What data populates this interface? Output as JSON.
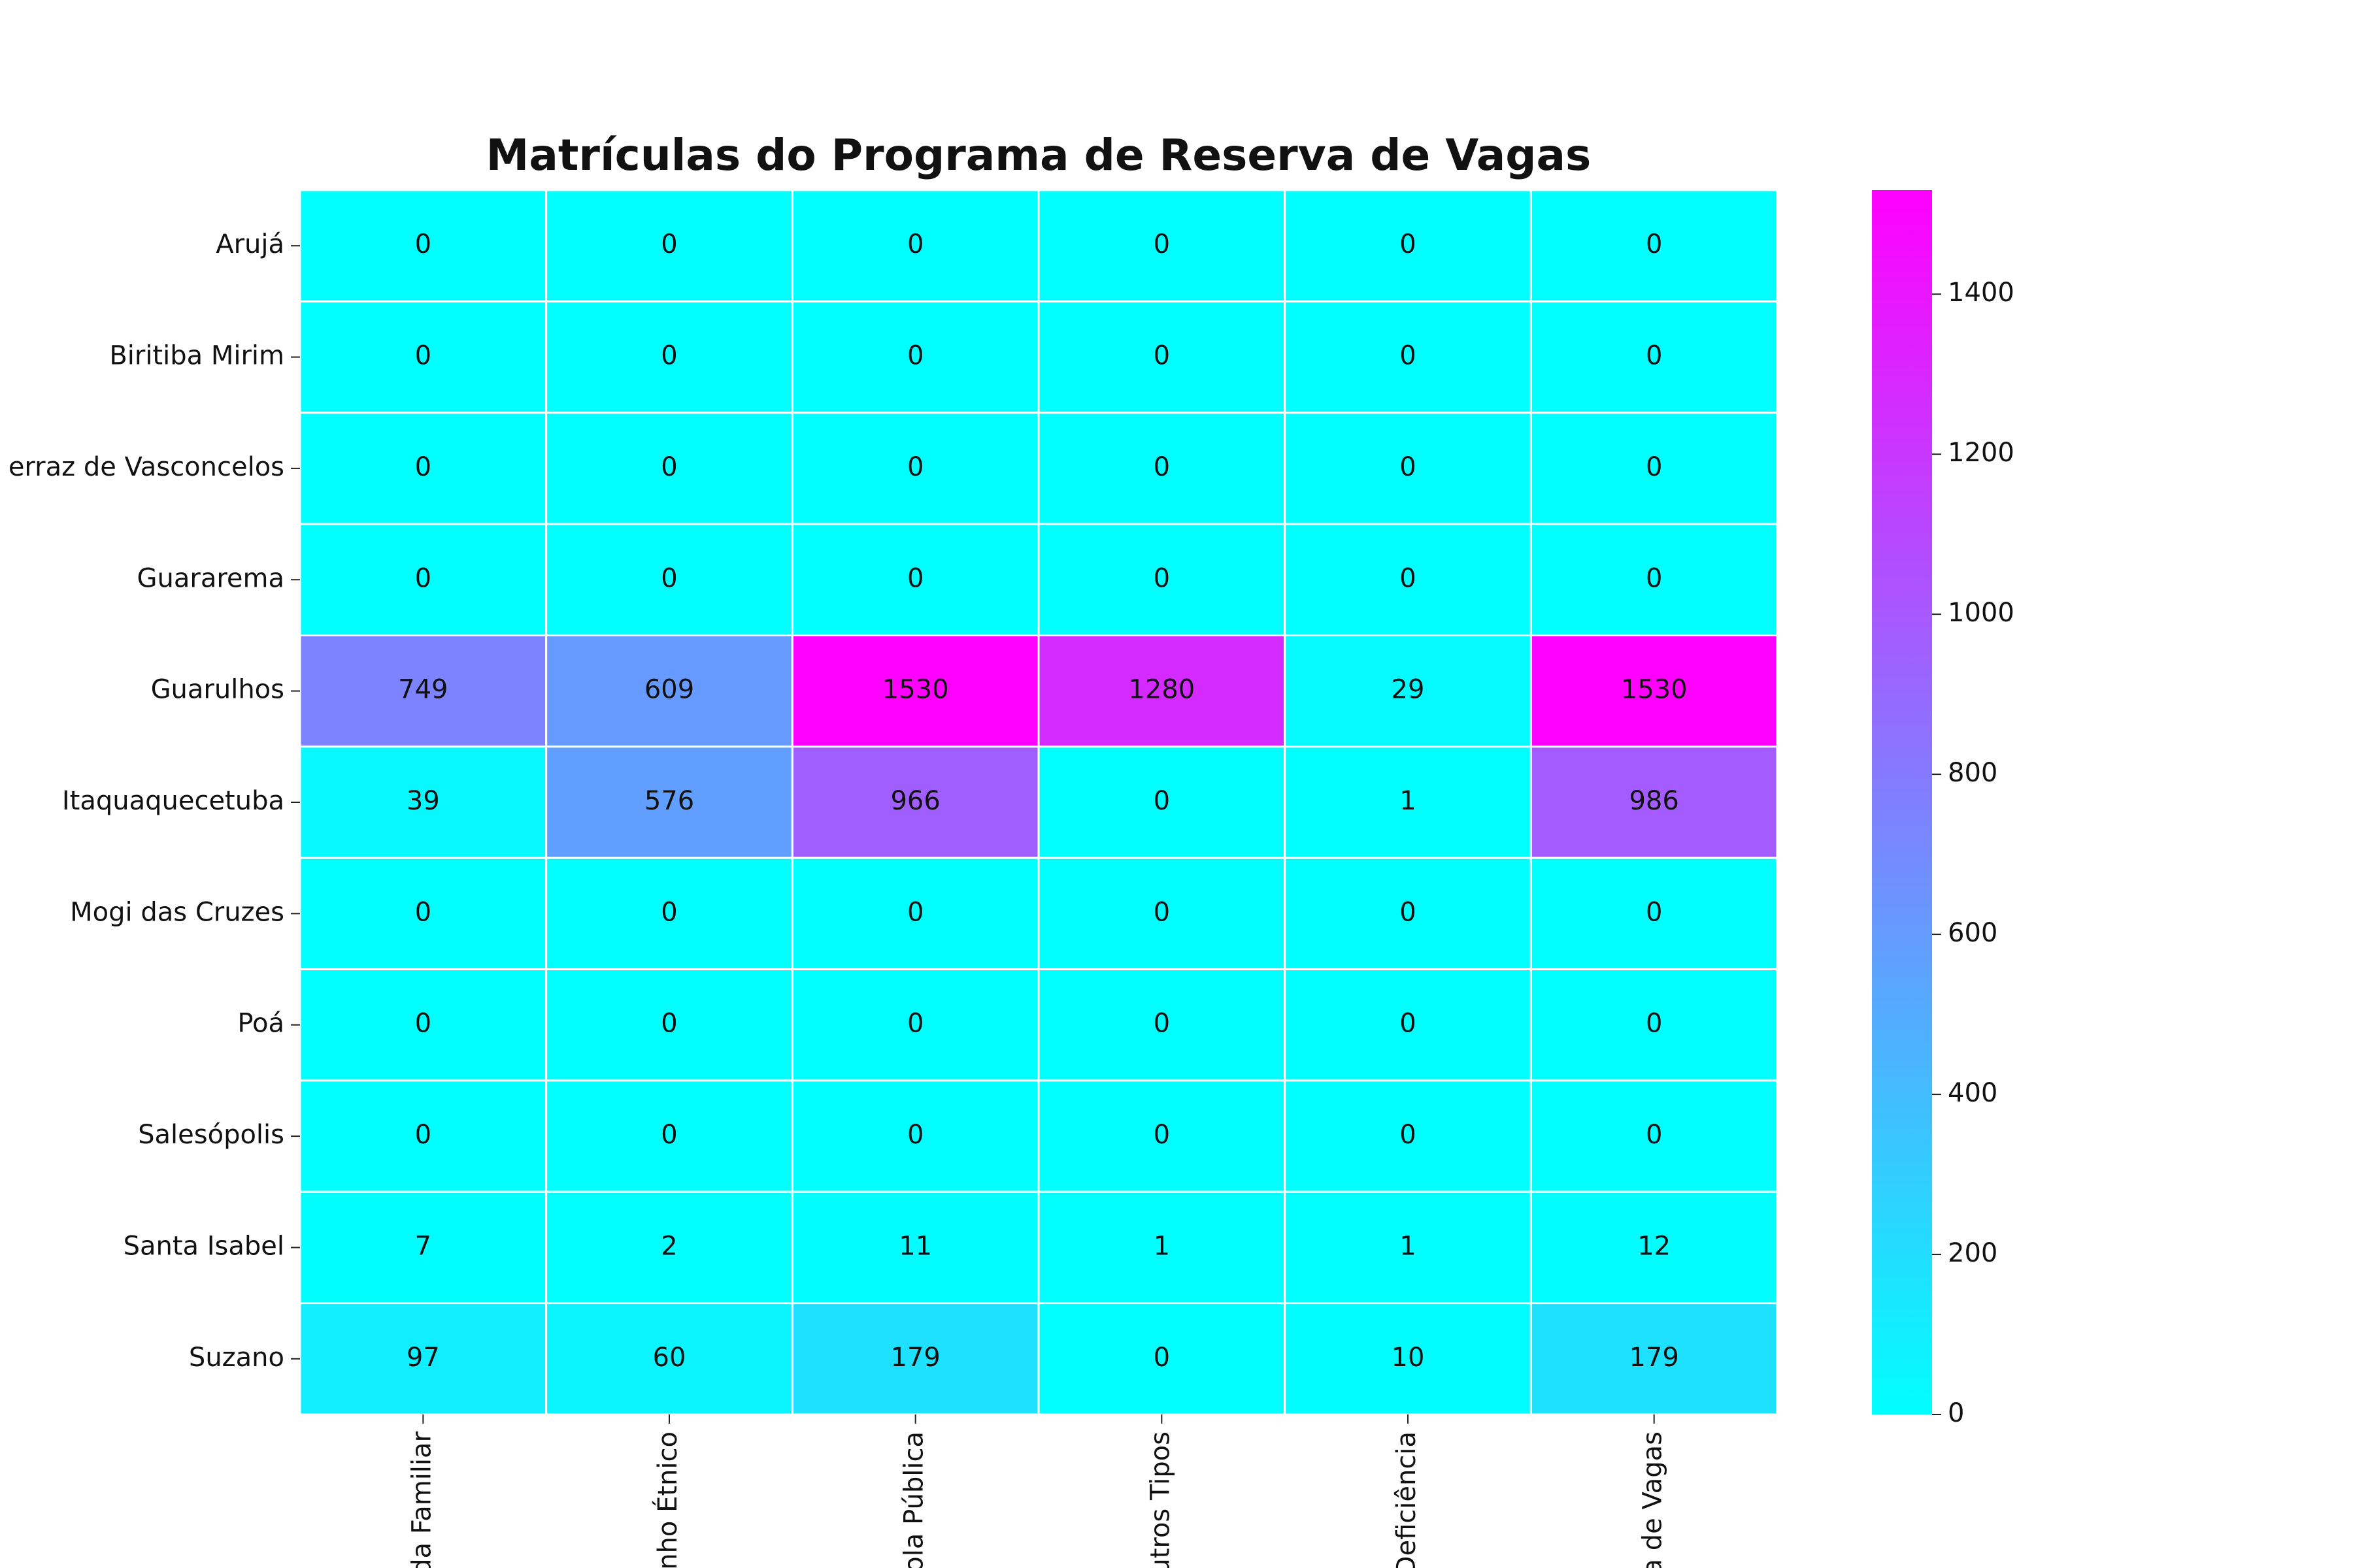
{
  "chart_data": {
    "type": "heatmap",
    "title": "Matrículas do Programa de Reserva de Vagas",
    "rows": [
      "Arujá",
      "Biritiba Mirim",
      "erraz de Vasconcelos",
      "Guararema",
      "Guarulhos",
      "Itaquaquecetuba",
      "Mogi das Cruzes",
      "Poá",
      "Salesópolis",
      "Santa Isabel",
      "Suzano"
    ],
    "columns": [
      "da Familiar",
      "unho Étnico",
      "cola Pública",
      "utros Tipos",
      "Deficiência",
      "ra de Vagas"
    ],
    "values": [
      [
        0,
        0,
        0,
        0,
        0,
        0
      ],
      [
        0,
        0,
        0,
        0,
        0,
        0
      ],
      [
        0,
        0,
        0,
        0,
        0,
        0
      ],
      [
        0,
        0,
        0,
        0,
        0,
        0
      ],
      [
        749,
        609,
        1530,
        1280,
        29,
        1530
      ],
      [
        39,
        576,
        966,
        0,
        1,
        986
      ],
      [
        0,
        0,
        0,
        0,
        0,
        0
      ],
      [
        0,
        0,
        0,
        0,
        0,
        0
      ],
      [
        0,
        0,
        0,
        0,
        0,
        0
      ],
      [
        7,
        2,
        11,
        1,
        1,
        12
      ],
      [
        97,
        60,
        179,
        0,
        10,
        179
      ]
    ],
    "colormap": "cool",
    "clim": [
      0,
      1530
    ],
    "colorbar_ticks": [
      0,
      200,
      400,
      600,
      800,
      1000,
      1200,
      1400
    ],
    "title_color": "#0000dd"
  }
}
